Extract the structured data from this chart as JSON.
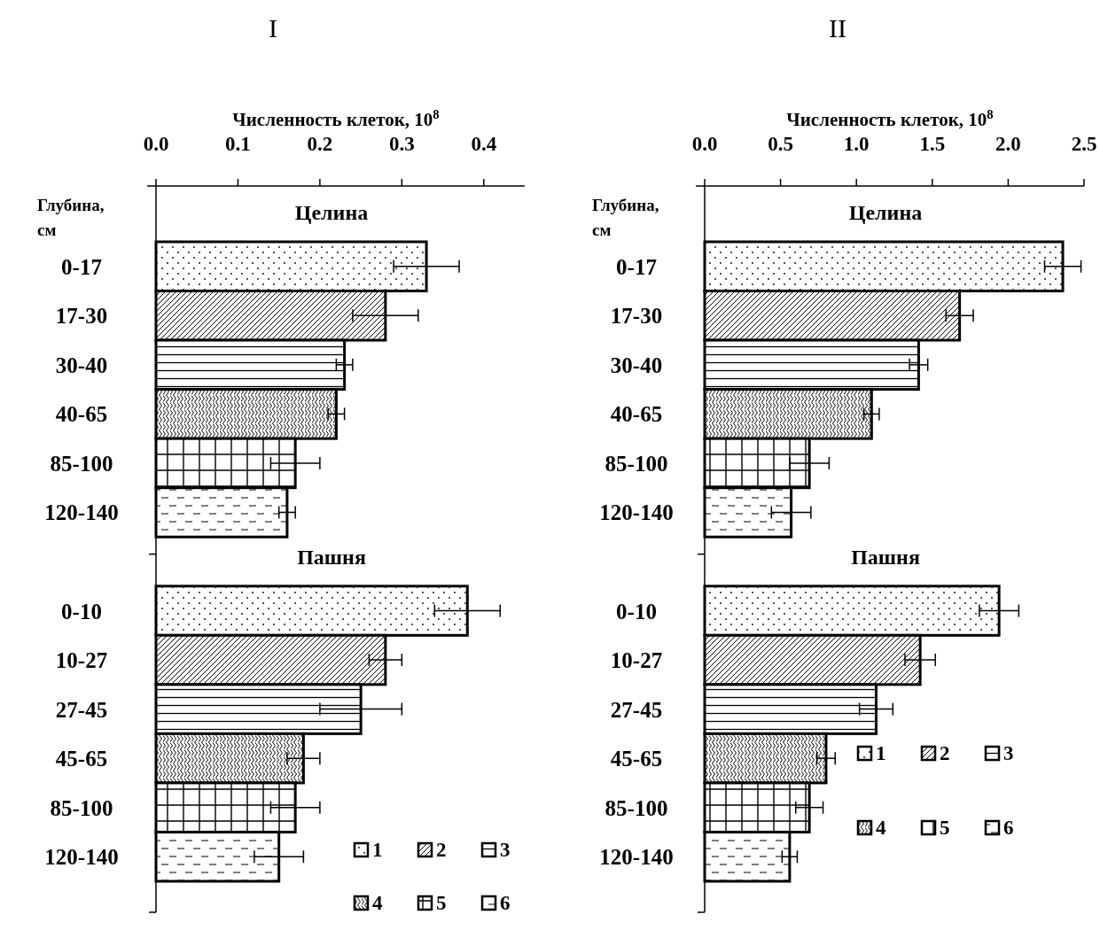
{
  "chart_data": [
    {
      "type": "bar",
      "orientation": "horizontal",
      "title": "I",
      "xlabel": "Численность клеток, 10$^{8}$",
      "ylabel": "Глубина, см",
      "annotations": [
        "Целина",
        "Пашня"
      ],
      "categories": [
        "0-17",
        "17-30",
        "30-40",
        "40-65",
        "85-100",
        "120-140",
        null,
        "0-10",
        "10-27",
        "27-45",
        "45-65",
        "85-100",
        "120-140"
      ],
      "xlim": [
        0,
        0.45
      ],
      "xticks": [
        {
          "value": 0,
          "label": "0.0"
        },
        0.1,
        0.2,
        0.3,
        0.4
      ],
      "legend": "bottom right",
      "series": [
        {
          "name": "1",
          "color": "#000000",
          "values": [
            0.33,
            null,
            null,
            null,
            null,
            null,
            null,
            0.38,
            null,
            null,
            null,
            null,
            null
          ],
          "errors": [
            0.04,
            null,
            null,
            null,
            null,
            null,
            null,
            0.04,
            null,
            null,
            null,
            null,
            null
          ]
        },
        {
          "name": "2",
          "color": "#000000",
          "values": [
            null,
            0.28,
            null,
            null,
            null,
            null,
            null,
            null,
            0.28,
            null,
            null,
            null,
            null
          ],
          "errors": [
            null,
            0.04,
            null,
            null,
            null,
            null,
            null,
            null,
            0.02,
            null,
            null,
            null,
            null
          ]
        },
        {
          "name": "3",
          "color": "#000000",
          "values": [
            null,
            null,
            0.23,
            null,
            null,
            null,
            null,
            null,
            null,
            0.25,
            null,
            null,
            null
          ],
          "errors": [
            null,
            null,
            0.01,
            null,
            null,
            null,
            null,
            null,
            null,
            0.05,
            null,
            null,
            null
          ]
        },
        {
          "name": "4",
          "color": "#000000",
          "values": [
            null,
            null,
            null,
            0.22,
            null,
            null,
            null,
            null,
            null,
            null,
            0.18,
            null,
            null
          ],
          "errors": [
            null,
            null,
            null,
            0.01,
            null,
            null,
            null,
            null,
            null,
            null,
            0.02,
            null,
            null
          ]
        },
        {
          "name": "5",
          "color": "#000000",
          "values": [
            null,
            null,
            null,
            null,
            0.17,
            null,
            null,
            null,
            null,
            null,
            null,
            0.17,
            null
          ],
          "errors": [
            null,
            null,
            null,
            null,
            0.03,
            null,
            null,
            null,
            null,
            null,
            null,
            0.03,
            null
          ]
        },
        {
          "name": "6",
          "color": "#000000",
          "values": [
            null,
            null,
            null,
            null,
            null,
            0.16,
            null,
            null,
            null,
            null,
            null,
            null,
            0.15
          ],
          "errors": [
            null,
            null,
            null,
            null,
            null,
            0.01,
            null,
            null,
            null,
            null,
            null,
            null,
            0.03
          ]
        }
      ]
    },
    {
      "type": "bar",
      "orientation": "horizontal",
      "title": "II",
      "xlabel": "Численность клеток, 10$^{8}$",
      "ylabel": "Глубина, см",
      "annotations": [
        "Целина",
        "Пашня"
      ],
      "categories": [
        "0-17",
        "17-30",
        "30-40",
        "40-65",
        "85-100",
        "120-140",
        null,
        "0-10",
        "10-27",
        "27-45",
        "45-65",
        "85-100",
        "120-140"
      ],
      "xlim": [
        0,
        2.5
      ],
      "xticks": [
        {
          "value": 0,
          "label": "0.0"
        },
        0.5,
        {
          "value": 1,
          "label": "1.0"
        },
        1.5,
        {
          "value": 2,
          "label": "2.0"
        },
        2.5
      ],
      "legend": "right",
      "series": [
        {
          "name": "1",
          "color": "#000000",
          "values": [
            2.36,
            null,
            null,
            null,
            null,
            null,
            null,
            1.94,
            null,
            null,
            null,
            null,
            null
          ],
          "errors": [
            0.12,
            null,
            null,
            null,
            null,
            null,
            null,
            0.13,
            null,
            null,
            null,
            null,
            null
          ]
        },
        {
          "name": "2",
          "color": "#000000",
          "values": [
            null,
            1.68,
            null,
            null,
            null,
            null,
            null,
            null,
            1.42,
            null,
            null,
            null,
            null
          ],
          "errors": [
            null,
            0.09,
            null,
            null,
            null,
            null,
            null,
            null,
            0.1,
            null,
            null,
            null,
            null
          ]
        },
        {
          "name": "3",
          "color": "#000000",
          "values": [
            null,
            null,
            1.41,
            null,
            null,
            null,
            null,
            null,
            null,
            1.13,
            null,
            null,
            null
          ],
          "errors": [
            null,
            null,
            0.06,
            null,
            null,
            null,
            null,
            null,
            null,
            0.11,
            null,
            null,
            null
          ]
        },
        {
          "name": "4",
          "color": "#000000",
          "values": [
            null,
            null,
            null,
            1.1,
            null,
            null,
            null,
            null,
            null,
            null,
            0.8,
            null,
            null
          ],
          "errors": [
            null,
            null,
            null,
            0.05,
            null,
            null,
            null,
            null,
            null,
            null,
            0.06,
            null,
            null
          ]
        },
        {
          "name": "5",
          "color": "#000000",
          "values": [
            null,
            null,
            null,
            null,
            0.69,
            null,
            null,
            null,
            null,
            null,
            null,
            0.69,
            null
          ],
          "errors": [
            null,
            null,
            null,
            null,
            0.13,
            null,
            null,
            null,
            null,
            null,
            null,
            0.09,
            null
          ]
        },
        {
          "name": "6",
          "color": "#000000",
          "values": [
            null,
            null,
            null,
            null,
            null,
            0.57,
            null,
            null,
            null,
            null,
            null,
            null,
            0.56
          ],
          "errors": [
            null,
            null,
            null,
            null,
            null,
            0.13,
            null,
            null,
            null,
            null,
            null,
            null,
            0.05
          ]
        }
      ]
    }
  ]
}
